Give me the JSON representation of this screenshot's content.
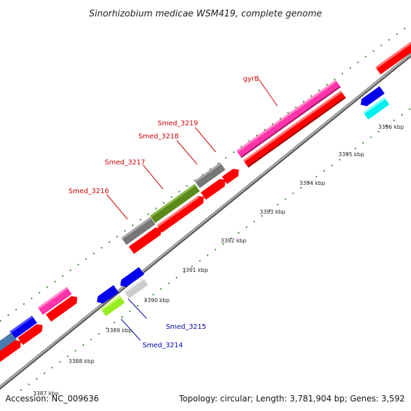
{
  "title": "Sinorhizobium medicae WSM419, complete genome",
  "footer": {
    "accession": "Accession: NC_009636",
    "topology": "Topology: circular; Length: 3,781,904 bp; Genes: 3,592"
  },
  "colors": {
    "backbone": "#9a9a9a",
    "tick": "#2e8b22",
    "red": "#ff0000",
    "magenta": "#ff33aa",
    "blue": "#0000ee",
    "gray": "#777777",
    "olive": "#5a8a1a",
    "cyan": "#00f0f0",
    "lime": "#99ee22",
    "lightgray": "#cccccc",
    "steelblue": "#4a7ab0",
    "label_red": "#cc0000",
    "label_blue": "#0000aa"
  },
  "tick_labels": [
    "3387 kbp",
    "3388 kbp",
    "3389 kbp",
    "3390 kbp",
    "3391 kbp",
    "3392 kbp",
    "3393 kbp",
    "3394 kbp",
    "3395 kbp",
    "3396 kbp"
  ],
  "gene_labels": [
    {
      "text": "gyrB",
      "strand": "forward"
    },
    {
      "text": "Smed_3219",
      "strand": "forward"
    },
    {
      "text": "Smed_3218",
      "strand": "forward"
    },
    {
      "text": "Smed_3217",
      "strand": "forward"
    },
    {
      "text": "Smed_3216",
      "strand": "forward"
    },
    {
      "text": "Smed_3215",
      "strand": "reverse"
    },
    {
      "text": "Smed_3214",
      "strand": "reverse"
    }
  ]
}
